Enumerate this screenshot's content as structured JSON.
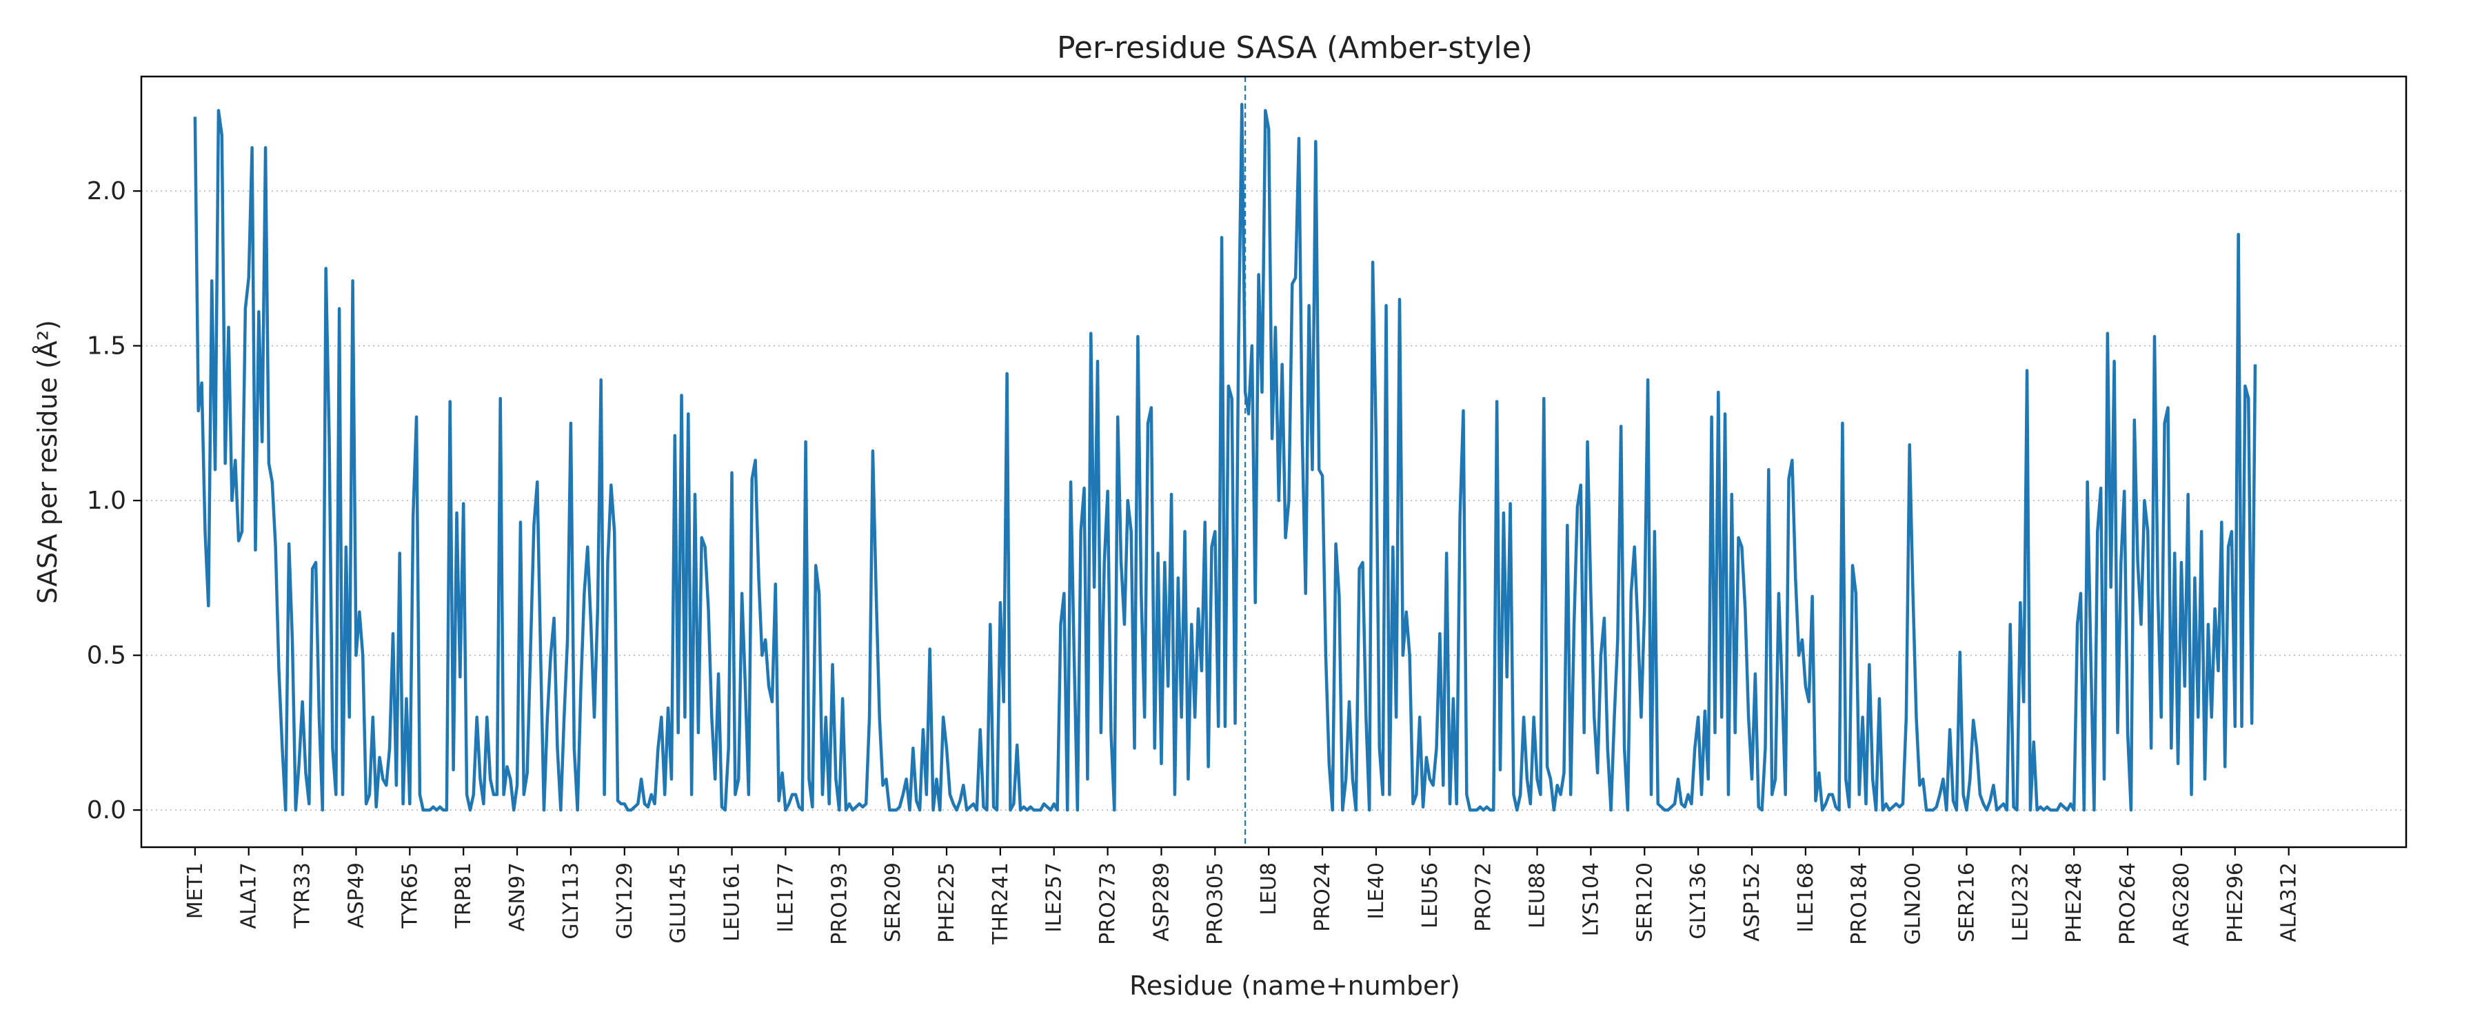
{
  "colors": {
    "line": "#1f77b4",
    "marker": "#1f77b4",
    "grid": "#b0b0b0",
    "axis": "#000000",
    "background": "#ffffff"
  },
  "chart_data": {
    "type": "line",
    "title": "Per-residue SASA (Amber-style)",
    "xlabel": "Residue (name+number)",
    "ylabel": "SASA per residue (Å²)",
    "ylim": [
      -0.12,
      2.37
    ],
    "y_ticks": [
      0.0,
      0.5,
      1.0,
      1.5,
      2.0
    ],
    "y_tick_labels": [
      "0.0",
      "0.5",
      "1.0",
      "1.5",
      "2.0"
    ],
    "grid": "horizontal dotted",
    "x_range": [
      -16,
      659
    ],
    "x_ticks": [
      {
        "index": 0,
        "label": "MET1"
      },
      {
        "index": 16,
        "label": "ALA17"
      },
      {
        "index": 32,
        "label": "TYR33"
      },
      {
        "index": 48,
        "label": "ASP49"
      },
      {
        "index": 64,
        "label": "TYR65"
      },
      {
        "index": 80,
        "label": "TRP81"
      },
      {
        "index": 96,
        "label": "ASN97"
      },
      {
        "index": 112,
        "label": "GLY113"
      },
      {
        "index": 128,
        "label": "GLY129"
      },
      {
        "index": 144,
        "label": "GLU145"
      },
      {
        "index": 160,
        "label": "LEU161"
      },
      {
        "index": 176,
        "label": "ILE177"
      },
      {
        "index": 192,
        "label": "PRO193"
      },
      {
        "index": 208,
        "label": "SER209"
      },
      {
        "index": 224,
        "label": "PHE225"
      },
      {
        "index": 240,
        "label": "THR241"
      },
      {
        "index": 256,
        "label": "ILE257"
      },
      {
        "index": 272,
        "label": "PRO273"
      },
      {
        "index": 288,
        "label": "ASP289"
      },
      {
        "index": 304,
        "label": "PRO305"
      },
      {
        "index": 320,
        "label": "LEU8"
      },
      {
        "index": 336,
        "label": "PRO24"
      },
      {
        "index": 352,
        "label": "ILE40"
      },
      {
        "index": 368,
        "label": "LEU56"
      },
      {
        "index": 384,
        "label": "PRO72"
      },
      {
        "index": 400,
        "label": "LEU88"
      },
      {
        "index": 416,
        "label": "LYS104"
      },
      {
        "index": 432,
        "label": "SER120"
      },
      {
        "index": 448,
        "label": "GLY136"
      },
      {
        "index": 464,
        "label": "ASP152"
      },
      {
        "index": 480,
        "label": "ILE168"
      },
      {
        "index": 496,
        "label": "PRO184"
      },
      {
        "index": 512,
        "label": "GLN200"
      },
      {
        "index": 528,
        "label": "SER216"
      },
      {
        "index": 544,
        "label": "LEU232"
      },
      {
        "index": 560,
        "label": "PHE248"
      },
      {
        "index": 576,
        "label": "PRO264"
      },
      {
        "index": 592,
        "label": "ARG280"
      },
      {
        "index": 608,
        "label": "PHE296"
      },
      {
        "index": 624,
        "label": "ALA312"
      }
    ],
    "chain_boundary_index": 313,
    "series": [
      {
        "values": [
          2.24,
          1.29,
          1.38,
          0.9,
          0.66,
          1.71,
          1.1,
          2.26,
          2.18,
          1.12,
          1.56,
          1.0,
          1.13,
          0.87,
          0.9,
          1.62,
          1.72,
          2.14,
          0.84,
          1.61,
          1.19,
          2.14,
          1.12,
          1.06,
          0.85,
          0.45,
          0.2,
          0.0,
          0.86,
          0.55,
          0.0,
          0.15,
          0.35,
          0.12,
          0.02,
          0.78,
          0.8,
          0.3,
          0.0,
          1.75,
          1.2,
          0.2,
          0.05,
          1.62,
          0.05,
          0.85,
          0.3,
          1.71,
          0.5,
          0.64,
          0.5,
          0.02,
          0.05,
          0.3,
          0.01,
          0.17,
          0.1,
          0.08,
          0.2,
          0.57,
          0.08,
          0.83,
          0.02,
          0.36,
          0.02,
          0.95,
          1.27,
          0.05,
          0.0,
          0.0,
          0.0,
          0.01,
          0.0,
          0.01,
          0.0,
          0.0,
          1.32,
          0.13,
          0.96,
          0.43,
          0.99,
          0.05,
          0.0,
          0.05,
          0.3,
          0.1,
          0.02,
          0.3,
          0.1,
          0.05,
          0.05,
          1.33,
          0.05,
          0.14,
          0.1,
          0.0,
          0.08,
          0.93,
          0.05,
          0.12,
          0.52,
          0.92,
          1.06,
          0.5,
          0.0,
          0.3,
          0.5,
          0.62,
          0.2,
          0.0,
          0.3,
          0.55,
          1.25,
          0.2,
          0.0,
          0.4,
          0.7,
          0.85,
          0.6,
          0.3,
          0.65,
          1.39,
          0.05,
          0.8,
          1.05,
          0.9,
          0.03,
          0.02,
          0.02,
          0.0,
          0.0,
          0.01,
          0.02,
          0.1,
          0.02,
          0.01,
          0.05,
          0.02,
          0.2,
          0.3,
          0.05,
          0.33,
          0.1,
          1.21,
          0.25,
          1.34,
          0.3,
          1.28,
          0.05,
          1.02,
          0.25,
          0.88,
          0.85,
          0.65,
          0.3,
          0.1,
          0.44,
          0.01,
          0.0,
          0.2,
          1.09,
          0.05,
          0.1,
          0.7,
          0.4,
          0.05,
          1.07,
          1.13,
          0.75,
          0.5,
          0.55,
          0.4,
          0.35,
          0.73,
          0.03,
          0.12,
          0.0,
          0.02,
          0.05,
          0.05,
          0.01,
          0.0,
          1.19,
          0.1,
          0.01,
          0.79,
          0.7,
          0.05,
          0.3,
          0.02,
          0.47,
          0.1,
          0.0,
          0.36,
          0.0,
          0.02,
          0.0,
          0.01,
          0.02,
          0.01,
          0.02,
          0.3,
          1.16,
          0.7,
          0.3,
          0.08,
          0.1,
          0.0,
          0.0,
          0.0,
          0.01,
          0.05,
          0.1,
          0.0,
          0.2,
          0.03,
          0.0,
          0.26,
          0.05,
          0.52,
          0.0,
          0.1,
          0.0,
          0.3,
          0.2,
          0.05,
          0.02,
          0.0,
          0.03,
          0.08,
          0.0,
          0.01,
          0.02,
          0.0,
          0.26,
          0.01,
          0.0,
          0.6,
          0.01,
          0.0,
          0.67,
          0.35,
          1.41,
          0.0,
          0.02,
          0.21,
          0.0,
          0.01,
          0.0,
          0.01,
          0.0,
          0.0,
          0.0,
          0.02,
          0.01,
          0.0,
          0.02,
          0.0,
          0.6,
          0.7,
          0.0,
          1.06,
          0.5,
          0.0,
          0.9,
          1.04,
          0.1,
          1.54,
          0.72,
          1.45,
          0.25,
          0.8,
          1.03,
          0.25,
          0.0,
          1.27,
          0.8,
          0.6,
          1.0,
          0.9,
          0.2,
          1.53,
          0.7,
          0.3,
          1.25,
          1.3,
          0.2,
          0.83,
          0.15,
          0.8,
          0.4,
          1.02,
          0.05,
          0.75,
          0.3,
          0.9,
          0.1,
          0.6,
          0.3,
          0.65,
          0.45,
          0.93,
          0.14,
          0.85,
          0.9,
          0.27,
          1.85,
          0.27,
          1.37,
          1.33,
          0.28,
          1.5,
          2.28,
          1.35,
          1.28,
          1.5,
          0.67,
          1.73,
          1.35,
          2.26,
          2.2,
          1.2,
          1.56,
          1.0,
          1.44,
          0.88,
          1.0,
          1.7,
          1.72,
          2.17,
          1.2,
          0.7,
          1.63,
          1.1,
          2.16,
          1.1,
          1.08,
          0.5,
          0.15,
          0.0,
          0.86,
          0.69,
          0.0,
          0.1,
          0.35,
          0.1,
          0.0,
          0.78,
          0.8,
          0.3,
          0.0,
          1.77,
          1.2,
          0.2,
          0.05,
          1.63,
          0.05,
          0.85,
          0.3,
          1.65,
          0.5,
          0.64,
          0.5,
          0.02,
          0.05,
          0.3,
          0.01,
          0.17,
          0.1,
          0.08,
          0.2,
          0.57,
          0.08,
          0.83,
          0.02,
          0.36,
          0.02,
          0.95,
          1.29,
          0.05,
          0.0,
          0.0,
          0.0,
          0.01,
          0.0,
          0.01,
          0.0,
          0.0,
          1.32,
          0.13,
          0.96,
          0.43,
          0.99,
          0.05,
          0.0,
          0.05,
          0.3,
          0.1,
          0.02,
          0.3,
          0.1,
          0.05,
          1.33,
          0.14,
          0.1,
          0.0,
          0.08,
          0.05,
          0.12,
          0.92,
          0.05,
          0.6,
          0.98,
          1.05,
          0.25,
          1.19,
          0.7,
          0.3,
          0.12,
          0.5,
          0.62,
          0.2,
          0.0,
          0.3,
          0.55,
          1.24,
          0.2,
          0.0,
          0.7,
          0.85,
          0.6,
          0.3,
          0.65,
          1.39,
          0.05,
          0.9,
          0.02,
          0.01,
          0.0,
          0.0,
          0.01,
          0.02,
          0.1,
          0.02,
          0.01,
          0.05,
          0.02,
          0.2,
          0.3,
          0.05,
          0.32,
          0.1,
          1.27,
          0.25,
          1.35,
          0.3,
          1.28,
          0.05,
          1.02,
          0.25,
          0.88,
          0.85,
          0.65,
          0.3,
          0.1,
          0.44,
          0.01,
          0.0,
          0.2,
          1.1,
          0.05,
          0.1,
          0.7,
          0.4,
          0.05,
          1.07,
          1.13,
          0.75,
          0.5,
          0.55,
          0.4,
          0.35,
          0.69,
          0.03,
          0.12,
          0.0,
          0.02,
          0.05,
          0.05,
          0.01,
          0.0,
          1.25,
          0.1,
          0.01,
          0.79,
          0.7,
          0.05,
          0.3,
          0.02,
          0.47,
          0.1,
          0.0,
          0.36,
          0.0,
          0.02,
          0.0,
          0.01,
          0.02,
          0.01,
          0.02,
          0.3,
          1.18,
          0.7,
          0.3,
          0.08,
          0.1,
          0.0,
          0.0,
          0.0,
          0.01,
          0.05,
          0.1,
          0.0,
          0.26,
          0.03,
          0.0,
          0.51,
          0.05,
          0.0,
          0.1,
          0.29,
          0.2,
          0.05,
          0.02,
          0.0,
          0.03,
          0.08,
          0.0,
          0.01,
          0.02,
          0.0,
          0.6,
          0.01,
          0.0,
          0.67,
          0.35,
          1.42,
          0.0,
          0.22,
          0.0,
          0.01,
          0.0,
          0.01,
          0.0,
          0.0,
          0.0,
          0.02,
          0.01,
          0.0,
          0.02,
          0.0,
          0.6,
          0.7,
          0.0,
          1.06,
          0.5,
          0.0,
          0.9,
          1.04,
          0.1,
          1.54,
          0.72,
          1.45,
          0.25,
          0.8,
          1.03,
          0.25,
          0.0,
          1.26,
          0.8,
          0.6,
          1.0,
          0.9,
          0.2,
          1.53,
          0.7,
          0.3,
          1.25,
          1.3,
          0.2,
          0.83,
          0.15,
          0.8,
          0.4,
          1.02,
          0.05,
          0.75,
          0.3,
          0.9,
          0.1,
          0.6,
          0.3,
          0.65,
          0.45,
          0.93,
          0.14,
          0.85,
          0.9,
          0.27,
          1.86,
          0.27,
          1.37,
          1.33,
          0.28,
          1.44
        ]
      }
    ]
  }
}
